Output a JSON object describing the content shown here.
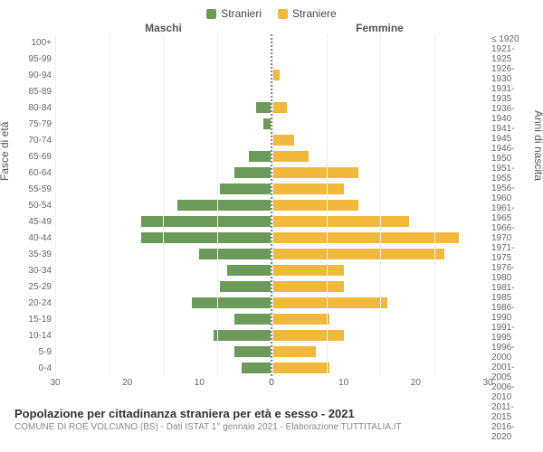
{
  "chart": {
    "type": "population-pyramid",
    "legend": [
      {
        "label": "Stranieri",
        "color": "#6c9a5b"
      },
      {
        "label": "Straniere",
        "color": "#f0b93b"
      }
    ],
    "header_left": "Maschi",
    "header_right": "Femmine",
    "ylabel_left": "Fasce di età",
    "ylabel_right": "Anni di nascita",
    "x_max": 30,
    "x_ticks": [
      0,
      10,
      20,
      30
    ],
    "age_labels": [
      "100+",
      "95-99",
      "90-94",
      "85-89",
      "80-84",
      "75-79",
      "70-74",
      "65-69",
      "60-64",
      "55-59",
      "50-54",
      "45-49",
      "40-44",
      "35-39",
      "30-34",
      "25-29",
      "20-24",
      "15-19",
      "10-14",
      "5-9",
      "0-4"
    ],
    "birth_labels": [
      "≤ 1920",
      "1921-1925",
      "1926-1930",
      "1931-1935",
      "1936-1940",
      "1941-1945",
      "1946-1950",
      "1951-1955",
      "1956-1960",
      "1961-1965",
      "1966-1970",
      "1971-1975",
      "1976-1980",
      "1981-1985",
      "1986-1990",
      "1991-1995",
      "1996-2000",
      "2001-2005",
      "2006-2010",
      "2011-2015",
      "2016-2020"
    ],
    "male_values": [
      0,
      0,
      0,
      0,
      2,
      1,
      0,
      3,
      5,
      7,
      13,
      18,
      18,
      10,
      6,
      7,
      11,
      5,
      8,
      5,
      4
    ],
    "female_values": [
      0,
      0,
      1,
      0,
      2,
      0,
      3,
      5,
      12,
      10,
      12,
      19,
      26,
      24,
      10,
      10,
      16,
      8,
      10,
      6,
      8
    ],
    "male_color": "#6c9a5b",
    "female_color": "#f0b93b",
    "grid_color": "#eeeeee",
    "background": "#ffffff",
    "label_fontsize": 10
  },
  "footer": {
    "title": "Popolazione per cittadinanza straniera per età e sesso - 2021",
    "subtitle": "COMUNE DI ROÈ VOLCIANO (BS) - Dati ISTAT 1° gennaio 2021 - Elaborazione TUTTITALIA.IT"
  }
}
